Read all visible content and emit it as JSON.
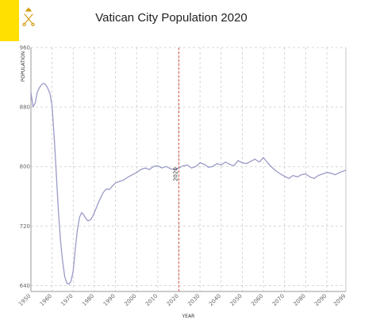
{
  "colors": {
    "flag_yellow": "#ffe000",
    "emblem": "#d4a017",
    "line": "#9a9ac8",
    "grid": "#cccccc",
    "marker": "#d9534f"
  },
  "header": {
    "title": "Vatican City Population 2020",
    "emblem_icon": "keys-emblem-icon"
  },
  "chart_data": {
    "type": "line",
    "title": "Vatican City Population 2020",
    "xlabel": "YEAR",
    "ylabel": "POPULATION",
    "xlim": [
      1950,
      2099
    ],
    "ylim": [
      632,
      960
    ],
    "grid": true,
    "x_ticks": [
      1950,
      1960,
      1970,
      1980,
      1990,
      2000,
      2010,
      2020,
      2030,
      2040,
      2050,
      2060,
      2070,
      2080,
      2090,
      2099
    ],
    "x_tick_labels": [
      "1950",
      "1960",
      "1970",
      "1980",
      "1990",
      "2000",
      "2010",
      "2020",
      "2030",
      "2040",
      "2050",
      "2060",
      "2070",
      "2080",
      "2090",
      "2099"
    ],
    "y_ticks": [
      640,
      720,
      800,
      880,
      960
    ],
    "y_tick_labels": [
      "640",
      "720",
      "800",
      "880",
      "960"
    ],
    "marker": {
      "x": 2020,
      "label": "2020"
    },
    "series": [
      {
        "x": [
          1950,
          1951,
          1952,
          1953,
          1954,
          1955,
          1956,
          1957,
          1958,
          1959,
          1960,
          1961,
          1962,
          1963,
          1964,
          1965,
          1966,
          1967,
          1968,
          1969,
          1970,
          1971,
          1972,
          1973,
          1974,
          1975,
          1976,
          1977,
          1978,
          1979,
          1980,
          1981,
          1982,
          1983,
          1984,
          1985,
          1986,
          1987,
          1988,
          1990,
          1992,
          1994,
          1996,
          1998,
          2000,
          2002,
          2004,
          2006,
          2008,
          2010,
          2012,
          2014,
          2016,
          2018,
          2020,
          2022,
          2024,
          2026,
          2028,
          2030,
          2032,
          2034,
          2036,
          2038,
          2040,
          2042,
          2044,
          2046,
          2048,
          2050,
          2052,
          2054,
          2056,
          2058,
          2060,
          2062,
          2064,
          2066,
          2068,
          2070,
          2072,
          2074,
          2076,
          2078,
          2080,
          2082,
          2084,
          2086,
          2088,
          2090,
          2092,
          2094,
          2096,
          2099
        ],
        "values": [
          900,
          880,
          885,
          900,
          906,
          910,
          912,
          910,
          905,
          898,
          882,
          840,
          790,
          740,
          700,
          672,
          652,
          643,
          642,
          646,
          660,
          690,
          715,
          732,
          738,
          735,
          730,
          727,
          728,
          732,
          738,
          745,
          752,
          758,
          764,
          768,
          770,
          769,
          772,
          778,
          780,
          782,
          786,
          789,
          792,
          796,
          798,
          796,
          800,
          801,
          798,
          800,
          797,
          796,
          798,
          801,
          802,
          798,
          800,
          805,
          803,
          799,
          800,
          804,
          802,
          806,
          803,
          801,
          808,
          805,
          804,
          807,
          810,
          806,
          812,
          805,
          799,
          794,
          790,
          787,
          784,
          788,
          786,
          789,
          790,
          786,
          784,
          788,
          790,
          792,
          791,
          789,
          792,
          795
        ]
      }
    ]
  }
}
